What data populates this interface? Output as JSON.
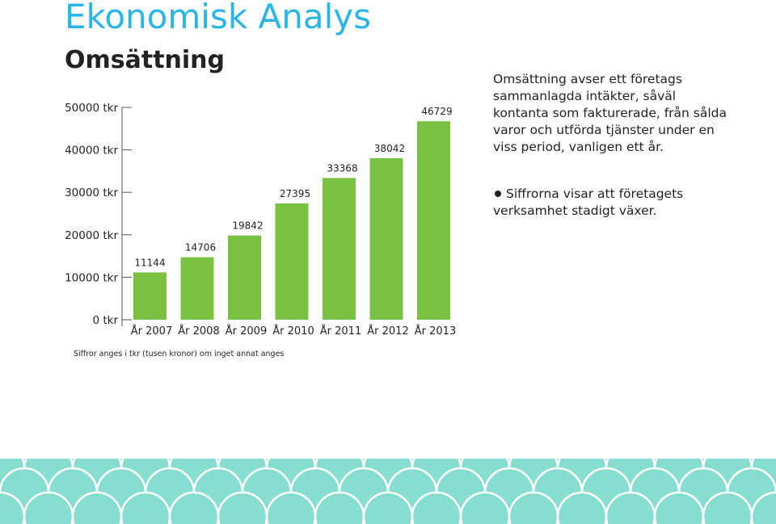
{
  "header": {
    "title": "Ekonomisk Analys",
    "subtitle": "Omsättning"
  },
  "text": {
    "description": "Omsättning avser ett företags sammanlagda intäkter, såväl kontanta som fakturerade, från sålda varor och utförda tjänster under en viss period, vanligen ett år.",
    "bullet": "Siffrorna visar att företagets verksamhet stadigt växer.",
    "footnote": "Siffror anges i tkr (tusen kronor) om inget annat anges"
  },
  "colors": {
    "title": "#29b6e6",
    "bar": "#7ac143",
    "pattern_light": "#87ddd0",
    "pattern_dark": "#5cc9b9"
  },
  "chart_data": {
    "type": "bar",
    "categories": [
      "År 2007",
      "År 2008",
      "År 2009",
      "År 2010",
      "År 2011",
      "År 2012",
      "År 2013"
    ],
    "values": [
      11144,
      14706,
      19842,
      27395,
      33368,
      38042,
      46729
    ],
    "data_labels": [
      "11144",
      "14706",
      "19842",
      "27395",
      "33368",
      "38042",
      "46729"
    ],
    "y_ticks": [
      0,
      10000,
      20000,
      30000,
      40000,
      50000
    ],
    "y_tick_labels": [
      "0 tkr",
      "10000 tkr",
      "20000 tkr",
      "30000 tkr",
      "40000 tkr",
      "50000 tkr"
    ],
    "ylim": [
      0,
      50000
    ],
    "grid": false,
    "legend": "none"
  }
}
